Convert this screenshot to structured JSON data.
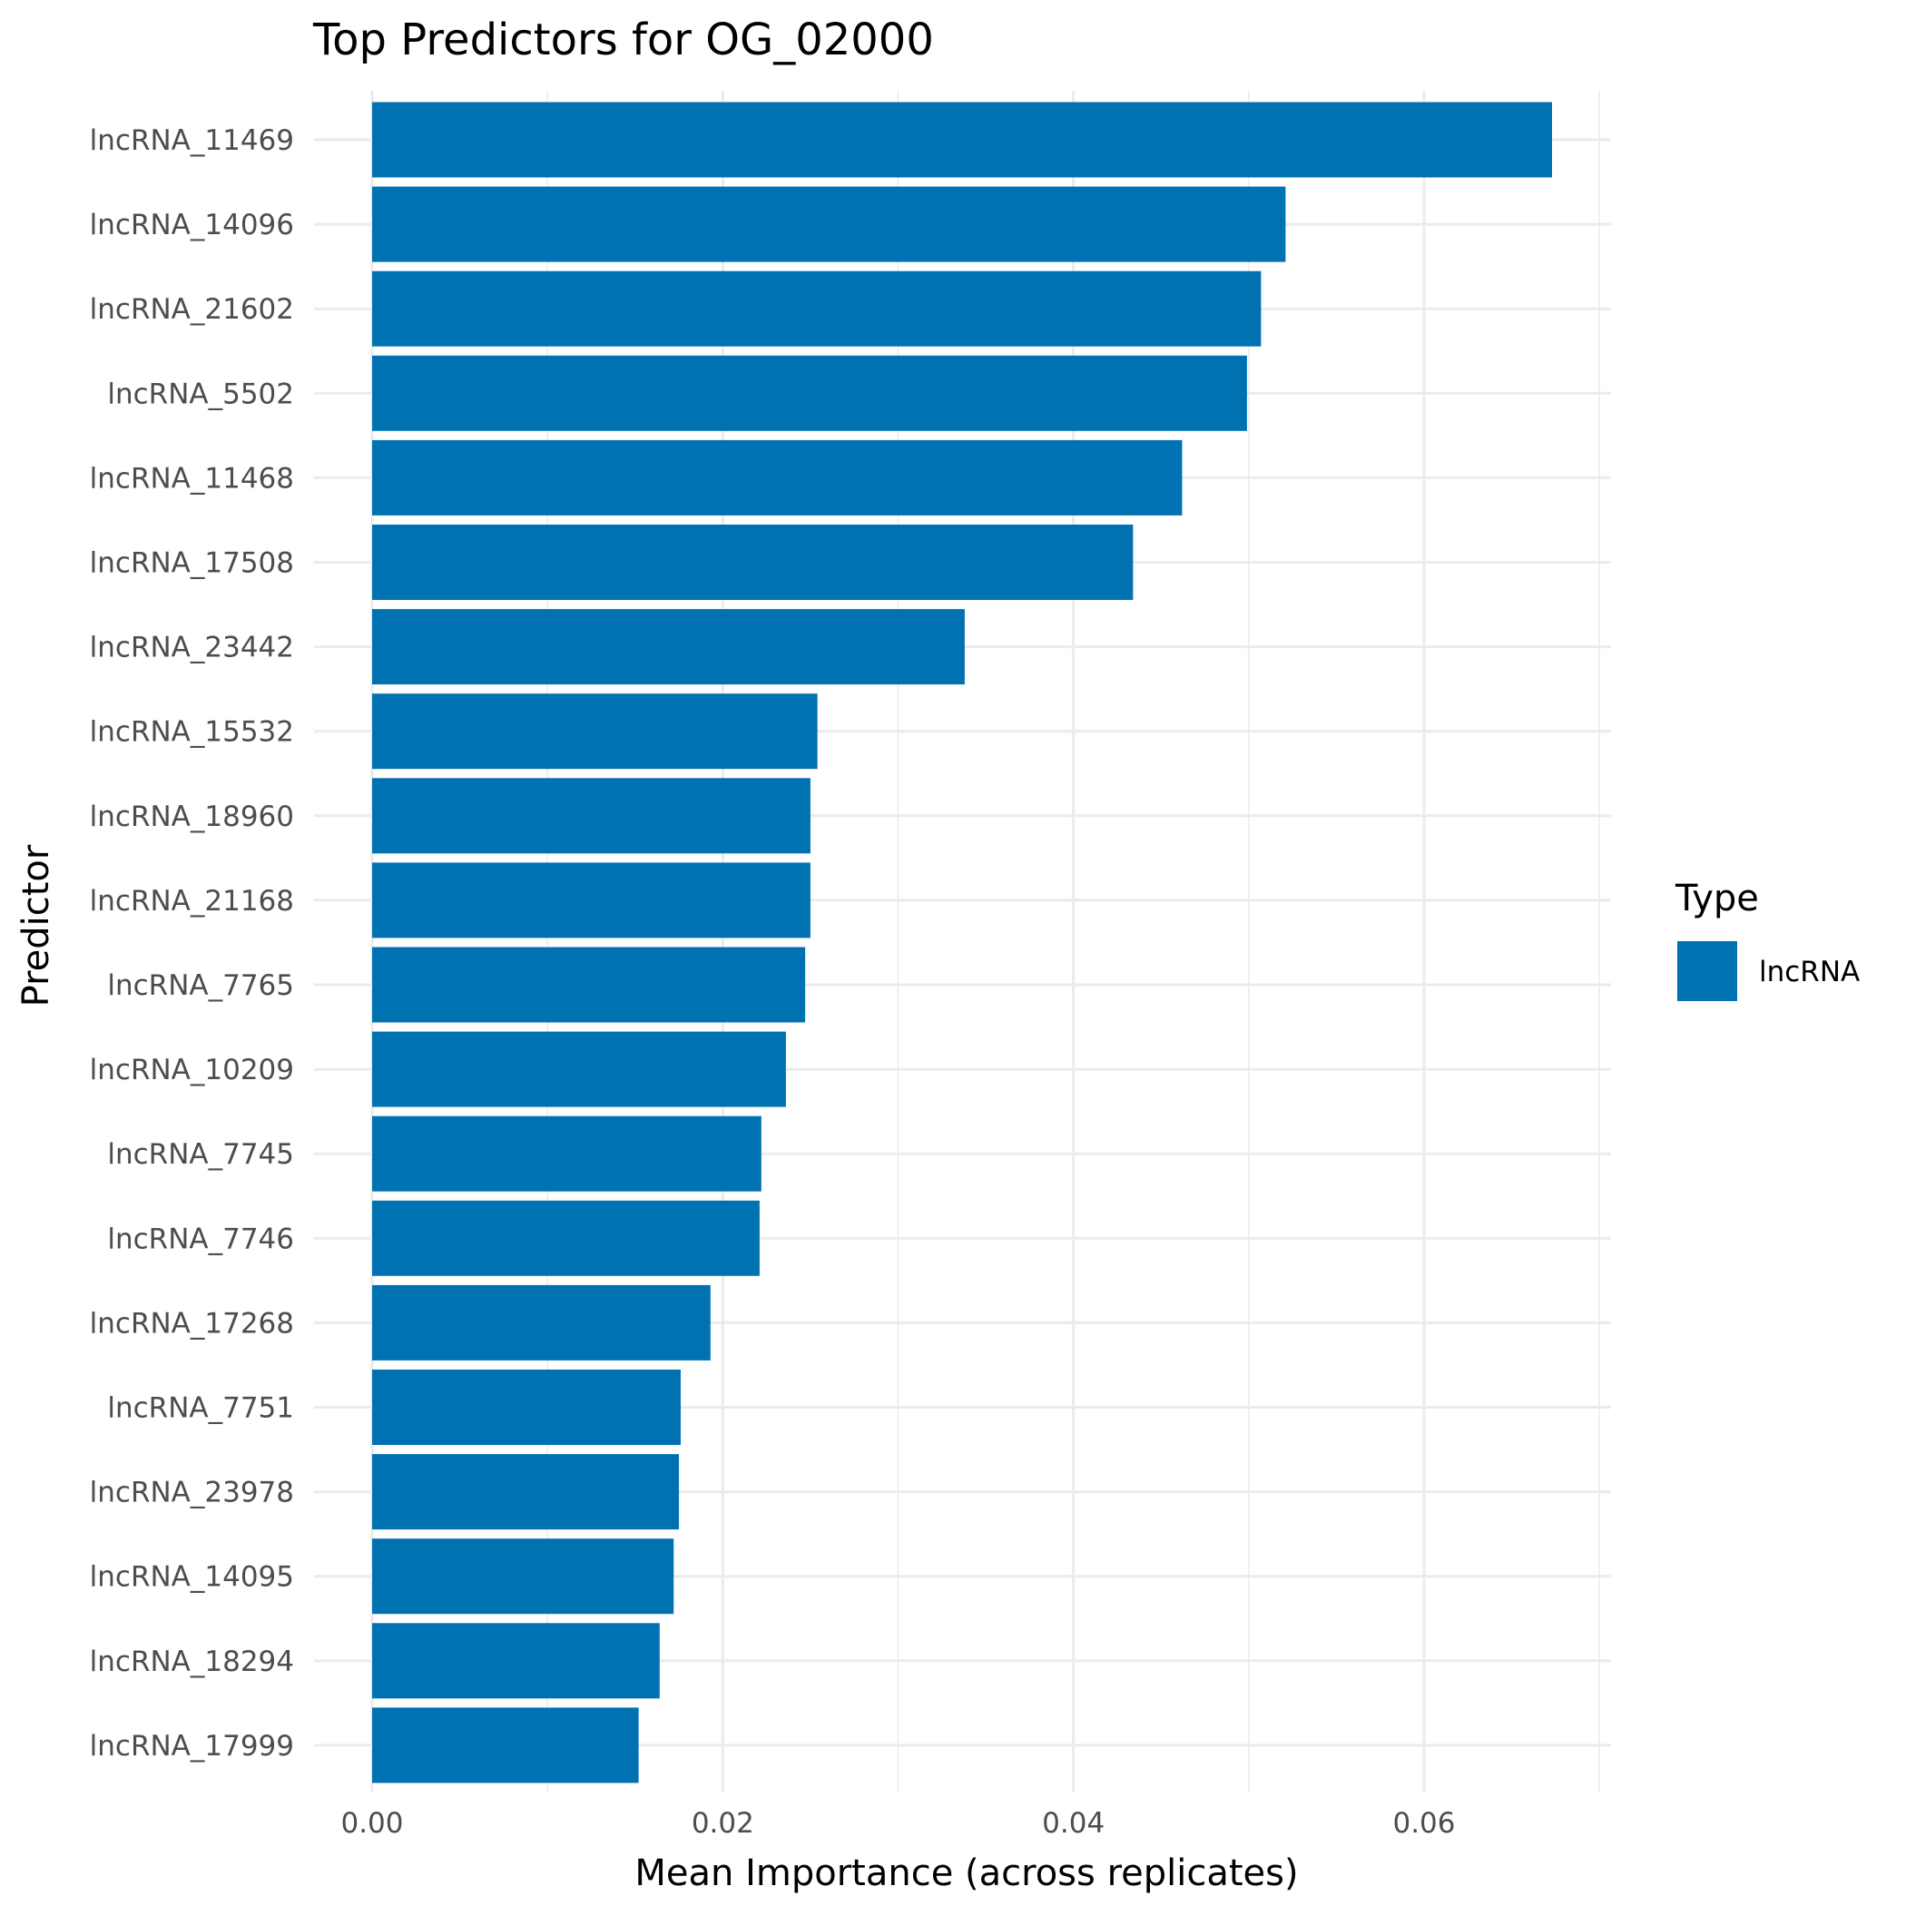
{
  "chart_data": {
    "type": "bar",
    "orientation": "horizontal",
    "title": "Top Predictors for OG_02000",
    "xlabel": "Mean Importance (across replicates)",
    "ylabel": "Predictor",
    "xlim": [
      0,
      0.07
    ],
    "x_ticks": [
      {
        "value": 0.0,
        "label": "0.00"
      },
      {
        "value": 0.02,
        "label": "0.02"
      },
      {
        "value": 0.04,
        "label": "0.04"
      },
      {
        "value": 0.06,
        "label": "0.06"
      }
    ],
    "categories": [
      "lncRNA_11469",
      "lncRNA_14096",
      "lncRNA_21602",
      "lncRNA_5502",
      "lncRNA_11468",
      "lncRNA_17508",
      "lncRNA_23442",
      "lncRNA_15532",
      "lncRNA_18960",
      "lncRNA_21168",
      "lncRNA_7765",
      "lncRNA_10209",
      "lncRNA_7745",
      "lncRNA_7746",
      "lncRNA_17268",
      "lncRNA_7751",
      "lncRNA_23978",
      "lncRNA_14095",
      "lncRNA_18294",
      "lncRNA_17999"
    ],
    "values": [
      0.0673,
      0.0521,
      0.0507,
      0.0499,
      0.0462,
      0.0434,
      0.0338,
      0.0254,
      0.025,
      0.025,
      0.0247,
      0.0236,
      0.0222,
      0.0221,
      0.0193,
      0.0176,
      0.0175,
      0.0172,
      0.0164,
      0.0152
    ],
    "bar_color": "#0072B2",
    "grid": true,
    "legend": {
      "title": "Type",
      "placement": "right",
      "items": [
        {
          "label": "lncRNA",
          "color": "#0072B2"
        }
      ]
    }
  }
}
